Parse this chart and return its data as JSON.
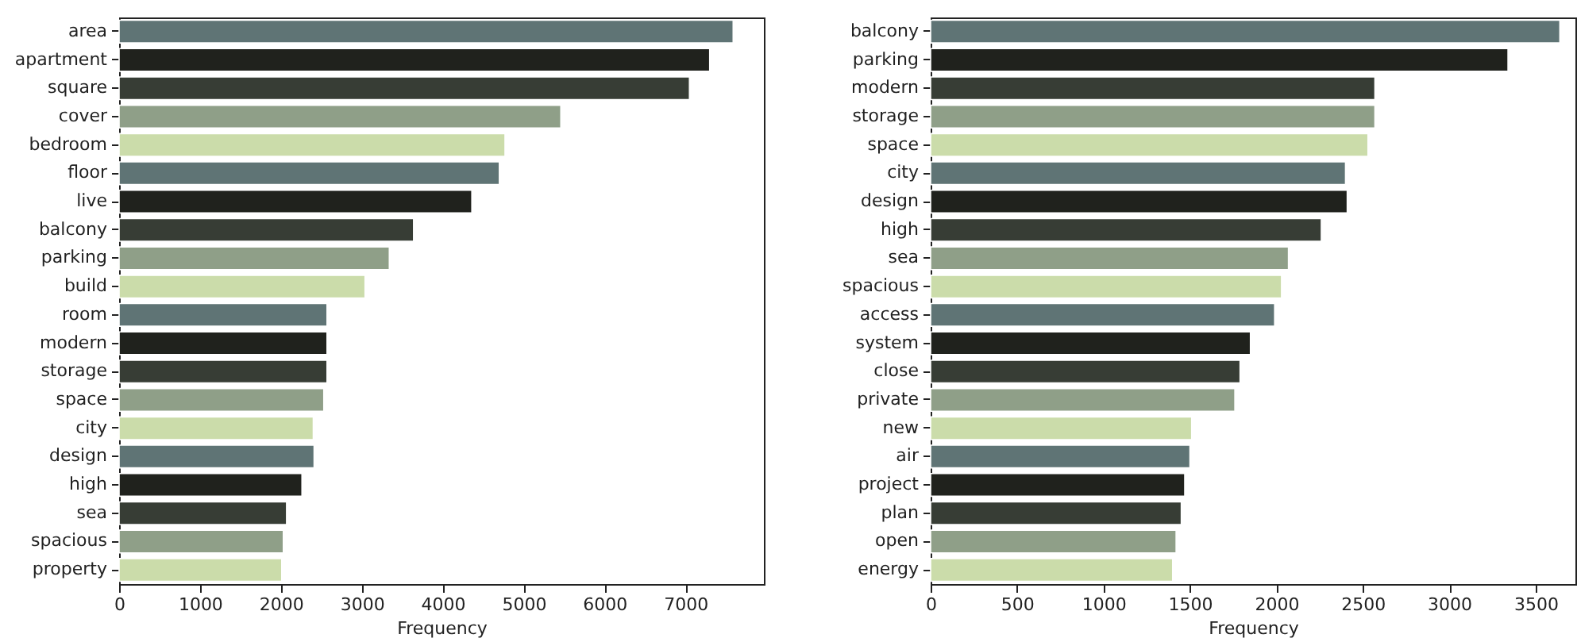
{
  "chart_data": [
    {
      "type": "bar",
      "orientation": "horizontal",
      "xlabel": "Frequency",
      "categories": [
        "area",
        "apartment",
        "square",
        "cover",
        "bedroom",
        "floor",
        "live",
        "balcony",
        "parking",
        "build",
        "room",
        "modern",
        "storage",
        "space",
        "city",
        "design",
        "high",
        "sea",
        "spacious",
        "property"
      ],
      "values": [
        7590,
        7300,
        7050,
        5460,
        4770,
        4700,
        4360,
        3640,
        3340,
        3040,
        2570,
        2570,
        2570,
        2530,
        2400,
        2410,
        2260,
        2070,
        2030,
        2010
      ],
      "colors": [
        "#5f7475",
        "#20221d",
        "#373d35",
        "#8f9f88",
        "#cbdcaa",
        "#5f7475",
        "#20221d",
        "#373d35",
        "#8f9f88",
        "#cbdcaa",
        "#5f7475",
        "#20221d",
        "#373d35",
        "#8f9f88",
        "#cbdcaa",
        "#5f7475",
        "#20221d",
        "#373d35",
        "#8f9f88",
        "#cbdcaa"
      ],
      "xlim": [
        0,
        7970
      ],
      "xticks": [
        0,
        1000,
        2000,
        3000,
        4000,
        5000,
        6000,
        7000
      ],
      "grid": false,
      "legend": false
    },
    {
      "type": "bar",
      "orientation": "horizontal",
      "xlabel": "Frequency",
      "categories": [
        "balcony",
        "parking",
        "modern",
        "storage",
        "space",
        "city",
        "design",
        "high",
        "sea",
        "spacious",
        "access",
        "system",
        "close",
        "private",
        "new",
        "air",
        "project",
        "plan",
        "open",
        "energy"
      ],
      "values": [
        3640,
        3340,
        2570,
        2570,
        2530,
        2400,
        2410,
        2260,
        2070,
        2030,
        1990,
        1850,
        1790,
        1760,
        1510,
        1500,
        1470,
        1450,
        1420,
        1400
      ],
      "colors": [
        "#5f7475",
        "#20221d",
        "#373d35",
        "#8f9f88",
        "#cbdcaa",
        "#5f7475",
        "#20221d",
        "#373d35",
        "#8f9f88",
        "#cbdcaa",
        "#5f7475",
        "#20221d",
        "#373d35",
        "#8f9f88",
        "#cbdcaa",
        "#5f7475",
        "#20221d",
        "#373d35",
        "#8f9f88",
        "#cbdcaa"
      ],
      "xlim": [
        0,
        3730
      ],
      "xticks": [
        0,
        500,
        1000,
        1500,
        2000,
        2500,
        3000,
        3500
      ],
      "grid": false,
      "legend": false
    }
  ]
}
